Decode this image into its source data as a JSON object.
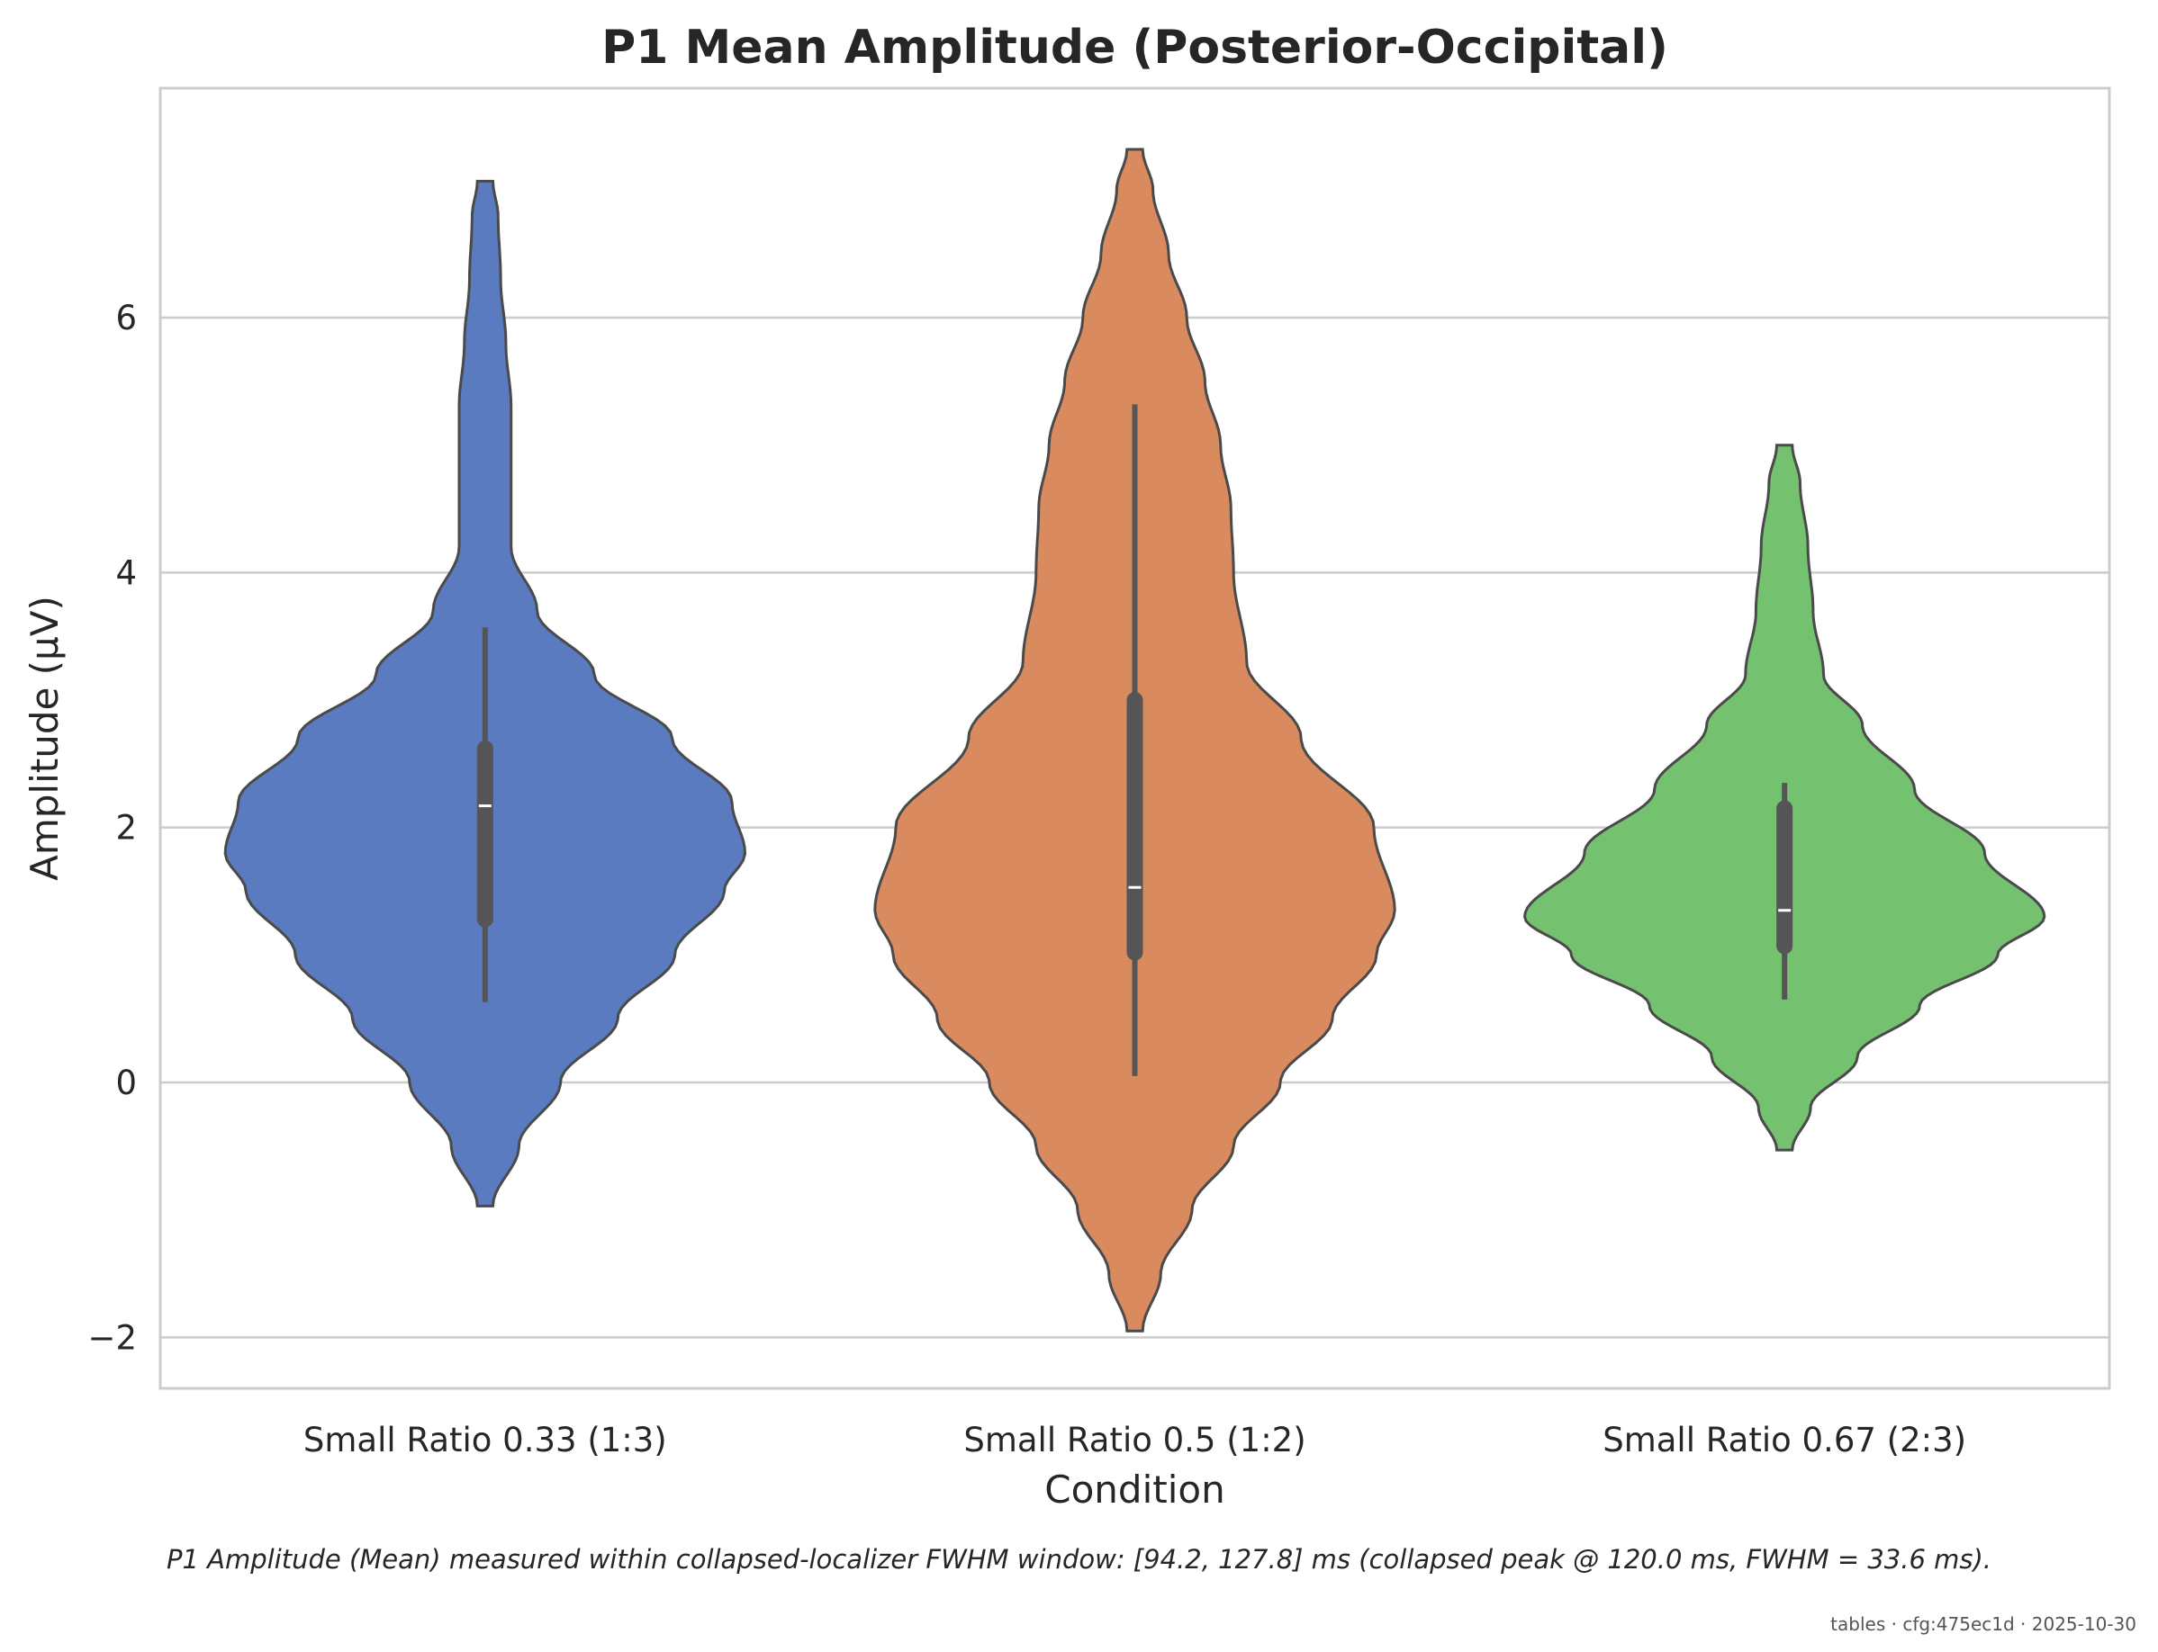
{
  "chart_data": {
    "type": "violin",
    "title": "P1 Mean Amplitude (Posterior-Occipital)",
    "xlabel": "Condition",
    "ylabel": "Amplitude (μV)",
    "ylim": [
      -2.4,
      7.8
    ],
    "yticks": [
      -2,
      0,
      2,
      4,
      6
    ],
    "ytick_labels": [
      "−2",
      "0",
      "2",
      "4",
      "6"
    ],
    "grid": "horizontal",
    "categories": [
      "Small Ratio 0.33 (1:3)",
      "Small Ratio 0.5 (1:2)",
      "Small Ratio 0.67 (2:3)"
    ],
    "colors": [
      "#5a7bbf",
      "#d98a5f",
      "#74c16f"
    ],
    "violins": [
      {
        "category": "Small Ratio 0.33 (1:3)",
        "min": -0.97,
        "max": 7.07,
        "whisker_low": 0.63,
        "whisker_high": 3.57,
        "q1": 1.28,
        "median": 2.17,
        "q3": 2.62,
        "density_profile": [
          [
            -0.97,
            0.03
          ],
          [
            -0.5,
            0.13
          ],
          [
            0.0,
            0.29
          ],
          [
            0.5,
            0.51
          ],
          [
            1.0,
            0.73
          ],
          [
            1.5,
            0.92
          ],
          [
            1.8,
            1.0
          ],
          [
            2.2,
            0.95
          ],
          [
            2.7,
            0.72
          ],
          [
            3.2,
            0.42
          ],
          [
            3.7,
            0.2
          ],
          [
            4.2,
            0.1
          ],
          [
            4.7,
            0.1
          ],
          [
            5.3,
            0.1
          ],
          [
            5.8,
            0.08
          ],
          [
            6.3,
            0.06
          ],
          [
            6.8,
            0.05
          ],
          [
            7.07,
            0.03
          ]
        ]
      },
      {
        "category": "Small Ratio 0.5 (1:2)",
        "min": -1.95,
        "max": 7.32,
        "whisker_low": 0.05,
        "whisker_high": 5.32,
        "q1": 1.02,
        "median": 1.53,
        "q3": 3.0,
        "density_profile": [
          [
            -1.95,
            0.03
          ],
          [
            -1.5,
            0.1
          ],
          [
            -1.0,
            0.22
          ],
          [
            -0.5,
            0.38
          ],
          [
            0.0,
            0.56
          ],
          [
            0.5,
            0.76
          ],
          [
            1.0,
            0.93
          ],
          [
            1.35,
            1.0
          ],
          [
            2.0,
            0.92
          ],
          [
            2.7,
            0.64
          ],
          [
            3.3,
            0.43
          ],
          [
            4.0,
            0.38
          ],
          [
            4.5,
            0.37
          ],
          [
            5.0,
            0.33
          ],
          [
            5.5,
            0.27
          ],
          [
            6.0,
            0.2
          ],
          [
            6.5,
            0.13
          ],
          [
            7.0,
            0.07
          ],
          [
            7.32,
            0.03
          ]
        ]
      },
      {
        "category": "Small Ratio 0.67 (2:3)",
        "min": -0.53,
        "max": 5.0,
        "whisker_low": 0.65,
        "whisker_high": 2.35,
        "q1": 1.07,
        "median": 1.35,
        "q3": 2.15,
        "density_profile": [
          [
            -0.53,
            0.03
          ],
          [
            -0.2,
            0.1
          ],
          [
            0.2,
            0.28
          ],
          [
            0.6,
            0.52
          ],
          [
            1.0,
            0.82
          ],
          [
            1.3,
            1.0
          ],
          [
            1.8,
            0.77
          ],
          [
            2.3,
            0.5
          ],
          [
            2.8,
            0.3
          ],
          [
            3.2,
            0.15
          ],
          [
            3.7,
            0.11
          ],
          [
            4.2,
            0.09
          ],
          [
            4.7,
            0.06
          ],
          [
            5.0,
            0.03
          ]
        ]
      }
    ]
  },
  "caption": "P1 Amplitude (Mean) measured within collapsed-localizer FWHM window: [94.2, 127.8] ms (collapsed peak @ 120.0 ms, FWHM = 33.6 ms).",
  "footer": "tables · cfg:475ec1d · 2025-10-30"
}
